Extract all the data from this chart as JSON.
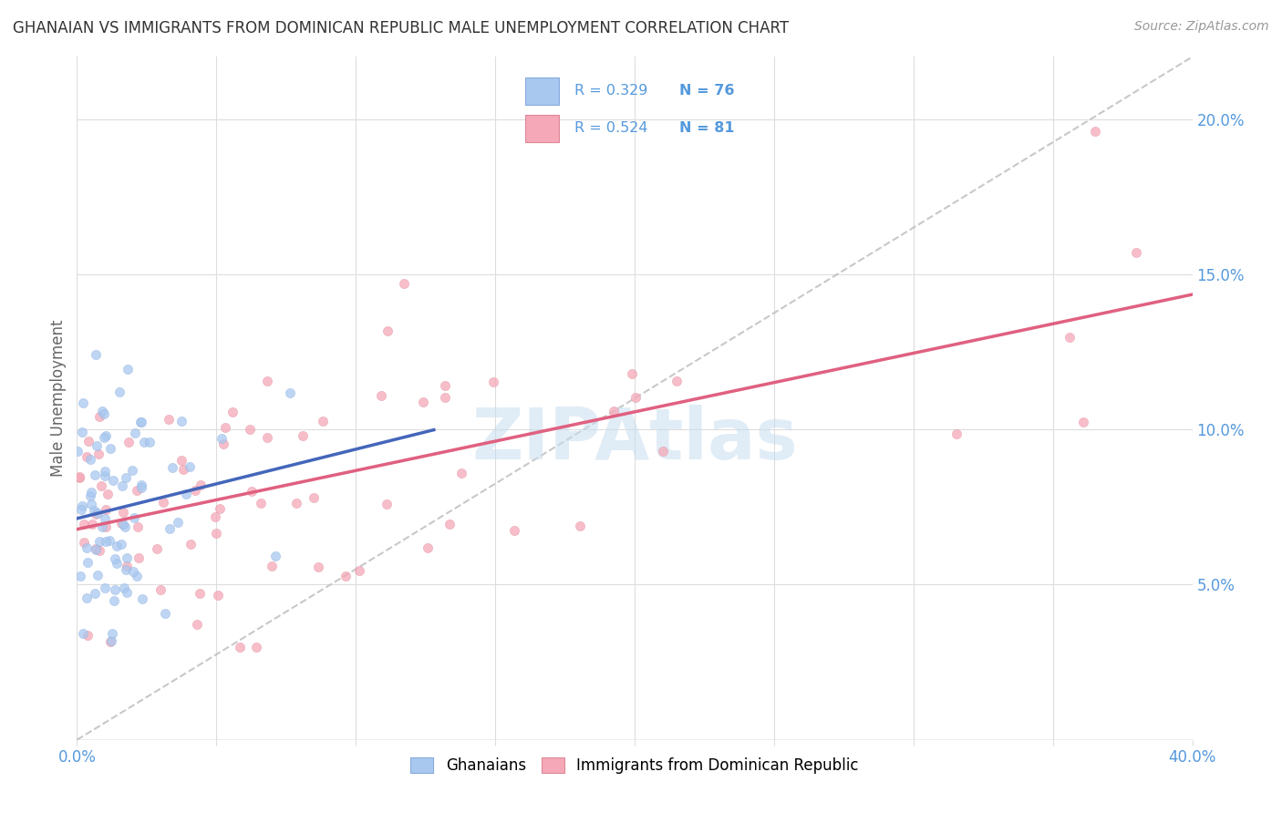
{
  "title": "GHANAIAN VS IMMIGRANTS FROM DOMINICAN REPUBLIC MALE UNEMPLOYMENT CORRELATION CHART",
  "source": "Source: ZipAtlas.com",
  "ylabel": "Male Unemployment",
  "watermark": "ZIPAtlas",
  "xmin": 0.0,
  "xmax": 0.4,
  "ymin": 0.0,
  "ymax": 0.22,
  "yticks": [
    0.05,
    0.1,
    0.15,
    0.2
  ],
  "ytick_labels": [
    "5.0%",
    "10.0%",
    "15.0%",
    "20.0%"
  ],
  "xtick_positions": [
    0.0,
    0.05,
    0.1,
    0.15,
    0.2,
    0.25,
    0.3,
    0.35,
    0.4
  ],
  "blue_color": "#A8C8F0",
  "pink_color": "#F5A8B8",
  "blue_line_color": "#4466BB",
  "pink_line_color": "#E06080",
  "dashed_line_color": "#BBBBBB",
  "title_color": "#333333",
  "axis_label_color": "#666666",
  "tick_color": "#5599DD",
  "grid_color": "#DDDDDD",
  "background_color": "#FFFFFF",
  "legend_r1": "R = 0.329",
  "legend_n1": "N = 76",
  "legend_r2": "R = 0.524",
  "legend_n2": "N = 81"
}
